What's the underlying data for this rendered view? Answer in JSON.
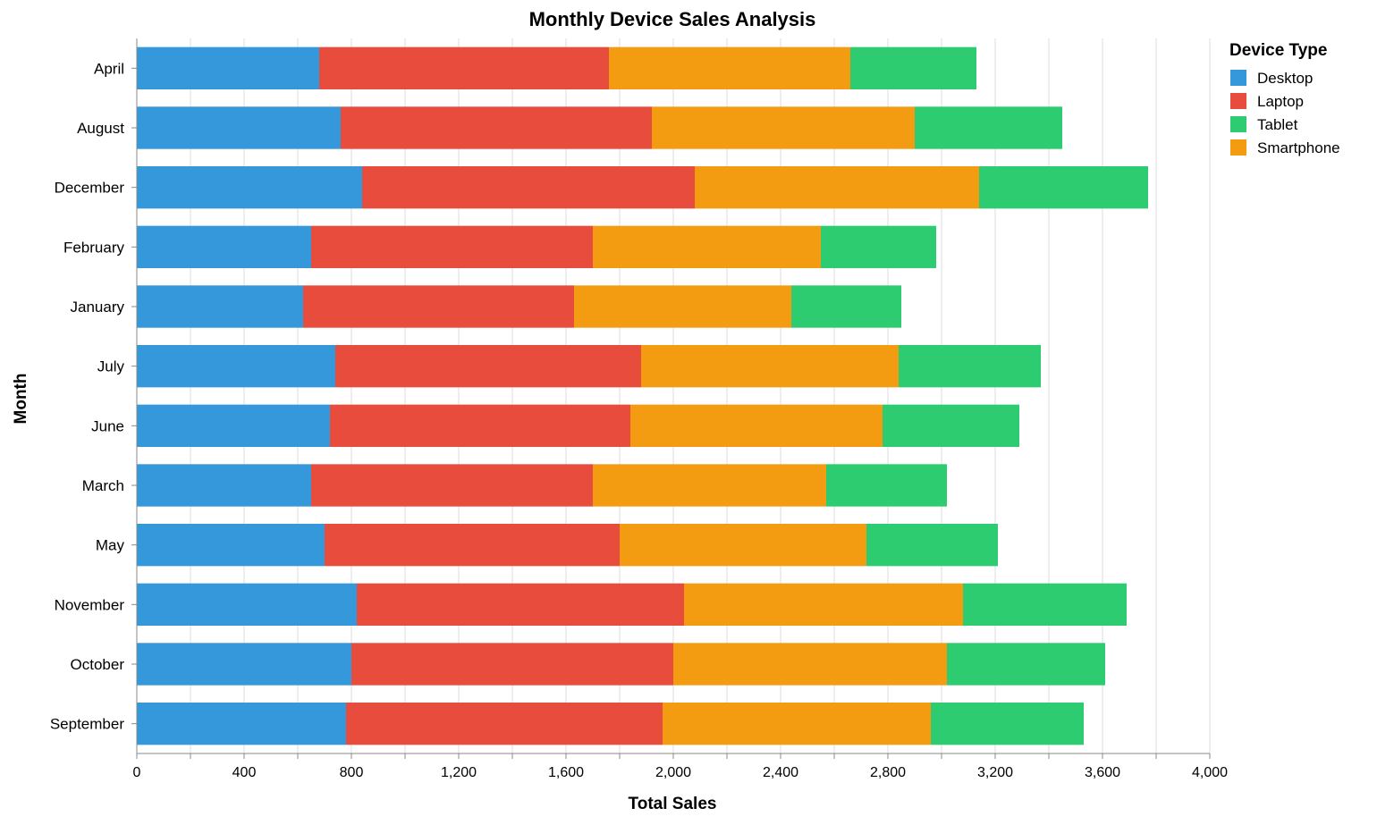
{
  "chart_data": {
    "type": "bar",
    "orientation": "horizontal",
    "stacked": true,
    "title": "Monthly Device Sales Analysis",
    "xlabel": "Total Sales",
    "ylabel": "Month",
    "xlim": [
      0,
      4000
    ],
    "x_ticks": [
      0,
      400,
      800,
      1200,
      1600,
      2000,
      2400,
      2800,
      3200,
      3600,
      4000
    ],
    "x_tick_labels": [
      "0",
      "400",
      "800",
      "1,200",
      "1,600",
      "2,000",
      "2,400",
      "2,800",
      "3,200",
      "3,600",
      "4,000"
    ],
    "grid": "vertical",
    "categories": [
      "April",
      "August",
      "December",
      "February",
      "January",
      "July",
      "June",
      "March",
      "May",
      "November",
      "October",
      "September"
    ],
    "stack_order": [
      "Desktop",
      "Laptop",
      "Smartphone",
      "Tablet"
    ],
    "series": [
      {
        "name": "Desktop",
        "color": "#3498db",
        "values": [
          680,
          760,
          840,
          650,
          620,
          740,
          720,
          650,
          700,
          820,
          800,
          780
        ]
      },
      {
        "name": "Laptop",
        "color": "#e74c3c",
        "values": [
          1080,
          1160,
          1240,
          1050,
          1010,
          1140,
          1120,
          1050,
          1100,
          1220,
          1200,
          1180
        ]
      },
      {
        "name": "Smartphone",
        "color": "#f39c12",
        "values": [
          900,
          980,
          1060,
          850,
          810,
          960,
          940,
          870,
          920,
          1040,
          1020,
          1000
        ]
      },
      {
        "name": "Tablet",
        "color": "#2ecc71",
        "values": [
          470,
          550,
          630,
          430,
          410,
          530,
          510,
          450,
          490,
          610,
          590,
          570
        ]
      }
    ],
    "legend": {
      "title": "Device Type",
      "position": "right",
      "items": [
        {
          "label": "Desktop",
          "color": "#3498db"
        },
        {
          "label": "Laptop",
          "color": "#e74c3c"
        },
        {
          "label": "Tablet",
          "color": "#2ecc71"
        },
        {
          "label": "Smartphone",
          "color": "#f39c12"
        }
      ]
    }
  }
}
